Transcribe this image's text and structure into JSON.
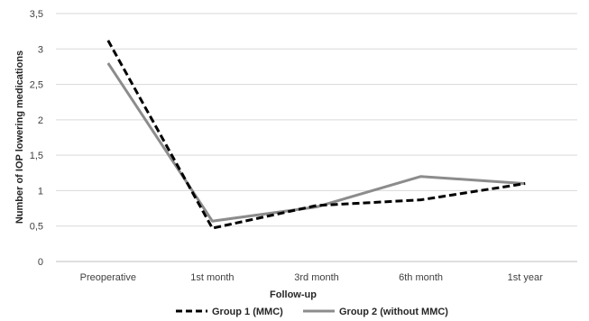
{
  "chart_data": {
    "type": "line",
    "categories": [
      "Preoperative",
      "1st month",
      "3rd month",
      "6th month",
      "1st year"
    ],
    "ylabel": "Number of IOP lowering medications",
    "xlabel": "Follow-up",
    "ylim": [
      0,
      3.5
    ],
    "yticks": [
      "0",
      "0,5",
      "1",
      "1,5",
      "2",
      "2,5",
      "3",
      "3,5"
    ],
    "ytick_values": [
      0,
      0.5,
      1,
      1.5,
      2,
      2.5,
      3,
      3.5
    ],
    "grid": true,
    "legend_position": "bottom",
    "series": [
      {
        "name": "Group 1 (MMC)",
        "values": [
          3.12,
          0.47,
          0.79,
          0.87,
          1.1
        ],
        "color": "#000000",
        "style": "dashed"
      },
      {
        "name": "Group 2 (without MMC)",
        "values": [
          2.8,
          0.57,
          0.77,
          1.2,
          1.1
        ],
        "color": "#8c8c8c",
        "style": "solid"
      }
    ]
  }
}
